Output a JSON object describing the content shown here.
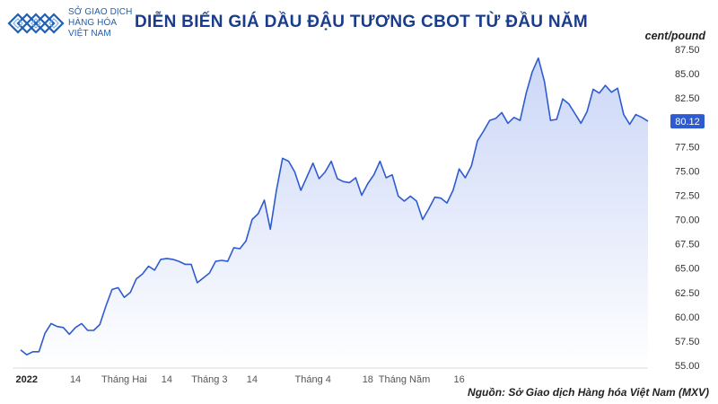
{
  "header": {
    "logo_lines": [
      "SỞ GIAO DỊCH",
      "HÀNG HÓA",
      "VIỆT NAM"
    ],
    "title": "DIỄN BIẾN GIÁ DẦU ĐẬU TƯƠNG CBOT TỪ ĐẦU NĂM",
    "unit": "cent/pound"
  },
  "footer": {
    "source": "Nguồn: Sở Giao dịch Hàng hóa Việt Nam (MXV)"
  },
  "colors": {
    "line": "#2e5bd0",
    "fill_top": "#c9d5f7",
    "fill_bottom": "#ffffff",
    "label_bg": "#2e5bd0",
    "title": "#1a3c8c"
  },
  "chart_data": {
    "type": "area",
    "ylim": [
      55,
      87.5
    ],
    "y_ticks": [
      "55.00",
      "57.50",
      "60.00",
      "62.50",
      "65.00",
      "67.50",
      "70.00",
      "72.50",
      "75.00",
      "77.50",
      "80.00",
      "82.50",
      "85.00",
      "87.50"
    ],
    "x_ticks": [
      {
        "label": "2022",
        "index": 1,
        "bold": true
      },
      {
        "label": "14",
        "index": 9
      },
      {
        "label": "Tháng Hai",
        "index": 17
      },
      {
        "label": "14",
        "index": 24
      },
      {
        "label": "Tháng 3",
        "index": 31
      },
      {
        "label": "14",
        "index": 38
      },
      {
        "label": "Tháng 4",
        "index": 48
      },
      {
        "label": "18",
        "index": 57
      },
      {
        "label": "Tháng Năm",
        "index": 63
      },
      {
        "label": "16",
        "index": 72
      }
    ],
    "last_value_label": "80.12",
    "series": [
      {
        "values": [
          56.6,
          56.1,
          56.4,
          56.4,
          58.3,
          59.3,
          59.0,
          58.9,
          58.2,
          58.9,
          59.3,
          58.6,
          58.6,
          59.2,
          61.1,
          62.8,
          63.0,
          62.0,
          62.5,
          63.9,
          64.4,
          65.2,
          64.8,
          65.9,
          66.0,
          65.9,
          65.7,
          65.4,
          65.4,
          63.5,
          64.0,
          64.5,
          65.7,
          65.8,
          65.7,
          67.1,
          67.0,
          67.8,
          70.0,
          70.6,
          72.0,
          69.0,
          73.0,
          76.3,
          76.0,
          74.9,
          73.0,
          74.4,
          75.8,
          74.2,
          74.9,
          76.0,
          74.2,
          73.9,
          73.8,
          74.3,
          72.5,
          73.7,
          74.6,
          76.0,
          74.3,
          74.6,
          72.4,
          71.9,
          72.4,
          71.9,
          70.0,
          71.1,
          72.3,
          72.2,
          71.7,
          73.0,
          75.2,
          74.3,
          75.5,
          78.1,
          79.1,
          80.2,
          80.4,
          81.0,
          79.9,
          80.5,
          80.2,
          83.0,
          85.2,
          86.6,
          84.2,
          80.2,
          80.3,
          82.4,
          81.9,
          80.9,
          79.9,
          81.1,
          83.4,
          83.0,
          83.8,
          83.1,
          83.5,
          80.8,
          79.8,
          80.8,
          80.5,
          80.1
        ]
      }
    ]
  }
}
